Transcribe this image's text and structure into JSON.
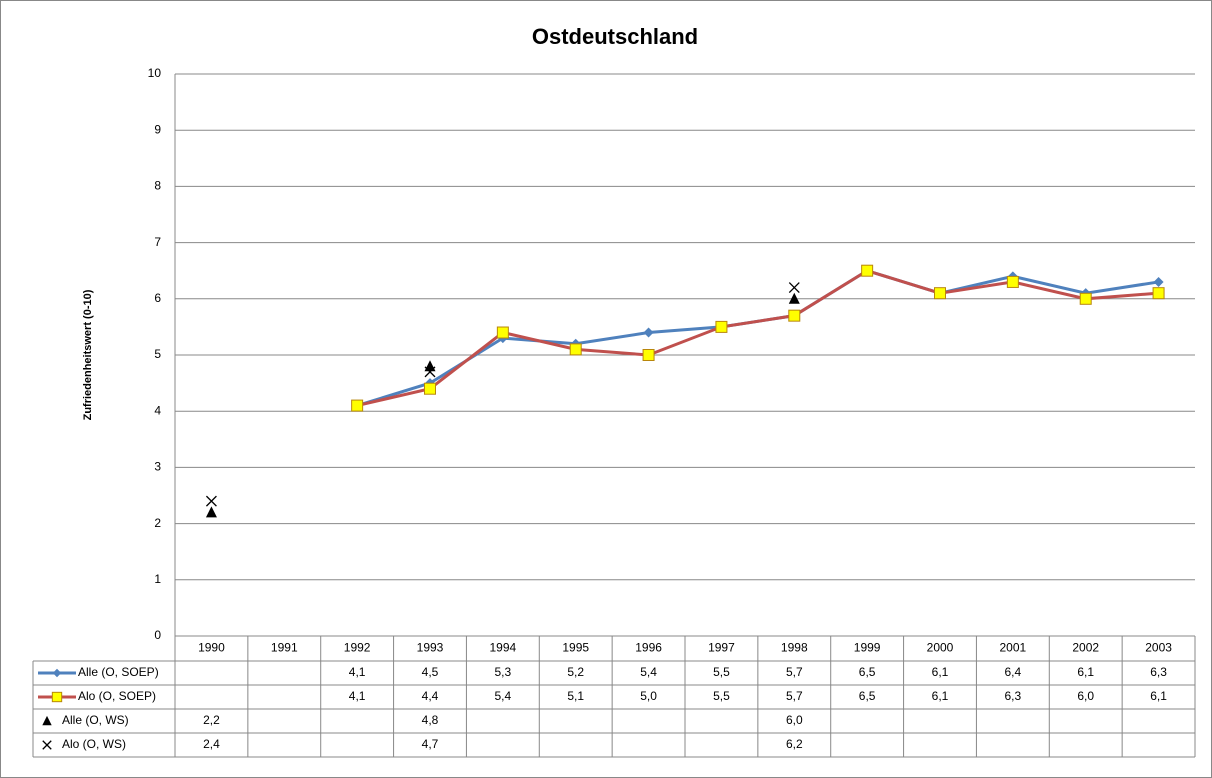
{
  "chart_data": {
    "type": "line",
    "title": "Ostdeutschland",
    "y_label": "Zufriedenheitswert (0-10)",
    "categories": [
      "1990",
      "1991",
      "1992",
      "1993",
      "1994",
      "1995",
      "1996",
      "1997",
      "1998",
      "1999",
      "2000",
      "2001",
      "2002",
      "2003"
    ],
    "ylim": [
      0,
      10
    ],
    "yticks": [
      0,
      1,
      2,
      3,
      4,
      5,
      6,
      7,
      8,
      9,
      10
    ],
    "grid": true,
    "data_table": true,
    "series": [
      {
        "name": "Alle (O, SOEP)",
        "color": "#4f81bd",
        "marker": "diamond",
        "marker_fill": "#4f81bd",
        "line": true,
        "values": [
          null,
          null,
          4.1,
          4.5,
          5.3,
          5.2,
          5.4,
          5.5,
          5.7,
          6.5,
          6.1,
          6.4,
          6.1,
          6.3
        ],
        "value_labels": [
          null,
          null,
          "4,1",
          "4,5",
          "5,3",
          "5,2",
          "5,4",
          "5,5",
          "5,7",
          "6,5",
          "6,1",
          "6,4",
          "6,1",
          "6,3"
        ]
      },
      {
        "name": "Alo (O, SOEP)",
        "color": "#c0504d",
        "marker": "square",
        "marker_fill": "#ffff00",
        "line": true,
        "values": [
          null,
          null,
          4.1,
          4.4,
          5.4,
          5.1,
          5.0,
          5.5,
          5.7,
          6.5,
          6.1,
          6.3,
          6.0,
          6.1
        ],
        "value_labels": [
          null,
          null,
          "4,1",
          "4,4",
          "5,4",
          "5,1",
          "5,0",
          "5,5",
          "5,7",
          "6,5",
          "6,1",
          "6,3",
          "6,0",
          "6,1"
        ]
      },
      {
        "name": "Alle (O, WS)",
        "color": "#000000",
        "marker": "triangle",
        "marker_fill": "#000000",
        "line": false,
        "values": [
          2.2,
          null,
          null,
          4.8,
          null,
          null,
          null,
          null,
          6.0,
          null,
          null,
          null,
          null,
          null
        ],
        "value_labels": [
          "2,2",
          null,
          null,
          "4,8",
          null,
          null,
          null,
          null,
          "6,0",
          null,
          null,
          null,
          null,
          null
        ]
      },
      {
        "name": "Alo (O, WS)",
        "color": "#000000",
        "marker": "x",
        "marker_fill": "none",
        "line": false,
        "values": [
          2.4,
          null,
          null,
          4.7,
          null,
          null,
          null,
          null,
          6.2,
          null,
          null,
          null,
          null,
          null
        ],
        "value_labels": [
          "2,4",
          null,
          null,
          "4,7",
          null,
          null,
          null,
          null,
          "6,2",
          null,
          null,
          null,
          null,
          null
        ]
      }
    ]
  }
}
